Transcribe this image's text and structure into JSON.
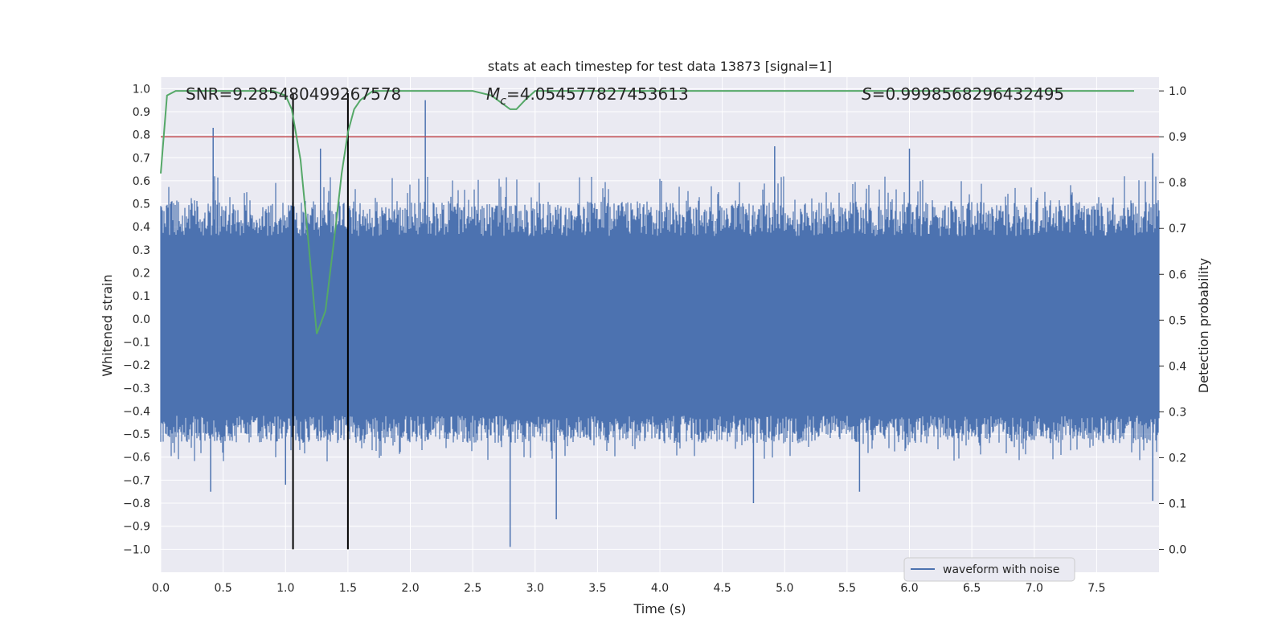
{
  "chart_data": {
    "type": "line",
    "title": "stats at each timestep for test data 13873 [signal=1]",
    "xlabel": "Time (s)",
    "ylabel_left": "Whitened strain",
    "ylabel_right": "Detection probability",
    "xlim": [
      0.0,
      8.0
    ],
    "ylim_left": [
      -1.1,
      1.05
    ],
    "ylim_right": [
      -0.05,
      1.03
    ],
    "x_ticks": [
      "0.0",
      "0.5",
      "1.0",
      "1.5",
      "2.0",
      "2.5",
      "3.0",
      "3.5",
      "4.0",
      "4.5",
      "5.0",
      "5.5",
      "6.0",
      "6.5",
      "7.0",
      "7.5"
    ],
    "x_tick_values": [
      0.0,
      0.5,
      1.0,
      1.5,
      2.0,
      2.5,
      3.0,
      3.5,
      4.0,
      4.5,
      5.0,
      5.5,
      6.0,
      6.5,
      7.0,
      7.5
    ],
    "y_left_ticks": [
      "1.0",
      "0.9",
      "0.8",
      "0.7",
      "0.6",
      "0.5",
      "0.4",
      "0.3",
      "0.2",
      "0.1",
      "0.0",
      "−0.1",
      "−0.2",
      "−0.3",
      "−0.4",
      "−0.5",
      "−0.6",
      "−0.7",
      "−0.8",
      "−0.9",
      "−1.0"
    ],
    "y_left_tick_values": [
      1.0,
      0.9,
      0.8,
      0.7,
      0.6,
      0.5,
      0.4,
      0.3,
      0.2,
      0.1,
      0.0,
      -0.1,
      -0.2,
      -0.3,
      -0.4,
      -0.5,
      -0.6,
      -0.7,
      -0.8,
      -0.9,
      -1.0
    ],
    "y_right_ticks": [
      "1.0",
      "0.9",
      "0.8",
      "0.7",
      "0.6",
      "0.5",
      "0.4",
      "0.3",
      "0.2",
      "0.1",
      "0.0"
    ],
    "y_right_tick_values": [
      1.0,
      0.9,
      0.8,
      0.7,
      0.6,
      0.5,
      0.4,
      0.3,
      0.2,
      0.1,
      0.0
    ],
    "annotations": {
      "snr": "SNR=9.285480499267578",
      "mc": "M",
      "mc_sub": "c",
      "mc_value": "=4.054577827453613",
      "s_symbol": "S",
      "s_value": "=0.9998568296432495"
    },
    "legend": {
      "label": "waveform with noise",
      "placement": "lower-right"
    },
    "series": [
      {
        "name": "waveform with noise",
        "axis": "left",
        "color": "#4c72b0",
        "style": "noise-band",
        "core_range": [
          -0.42,
          0.36
        ],
        "typical_peak": [
          -0.62,
          0.62
        ],
        "notable_peaks_x": [
          0.42,
          1.28,
          2.12,
          4.92,
          6.0,
          7.95
        ],
        "notable_peaks_y": [
          0.83,
          0.74,
          0.95,
          0.75,
          0.74,
          0.72
        ],
        "notable_troughs_x": [
          0.4,
          1.0,
          2.8,
          3.17,
          4.75,
          5.6,
          7.95
        ],
        "notable_troughs_y": [
          -0.75,
          -0.72,
          -0.99,
          -0.87,
          -0.8,
          -0.75,
          -0.79
        ]
      },
      {
        "name": "detection probability",
        "axis": "right",
        "color": "#55a868",
        "x": [
          0.0,
          0.05,
          0.12,
          0.3,
          0.6,
          0.9,
          1.0,
          1.05,
          1.12,
          1.18,
          1.25,
          1.32,
          1.4,
          1.45,
          1.5,
          1.55,
          1.6,
          1.7,
          1.8,
          2.0,
          2.5,
          2.65,
          2.75,
          2.8,
          2.85,
          2.92,
          3.0,
          3.5,
          5.0,
          7.5,
          7.8
        ],
        "y": [
          0.82,
          0.99,
          1.0,
          1.0,
          1.0,
          1.0,
          0.99,
          0.96,
          0.85,
          0.68,
          0.47,
          0.52,
          0.7,
          0.82,
          0.91,
          0.96,
          0.98,
          1.0,
          1.0,
          1.0,
          1.0,
          0.99,
          0.97,
          0.96,
          0.96,
          0.98,
          1.0,
          1.0,
          1.0,
          1.0,
          1.0
        ]
      }
    ],
    "threshold_line": {
      "axis": "right",
      "value": 0.9,
      "color": "#c44e52"
    },
    "vertical_lines": {
      "x": [
        1.06,
        1.5
      ],
      "from": -1.0,
      "to": 0.98,
      "color": "#000000"
    }
  }
}
